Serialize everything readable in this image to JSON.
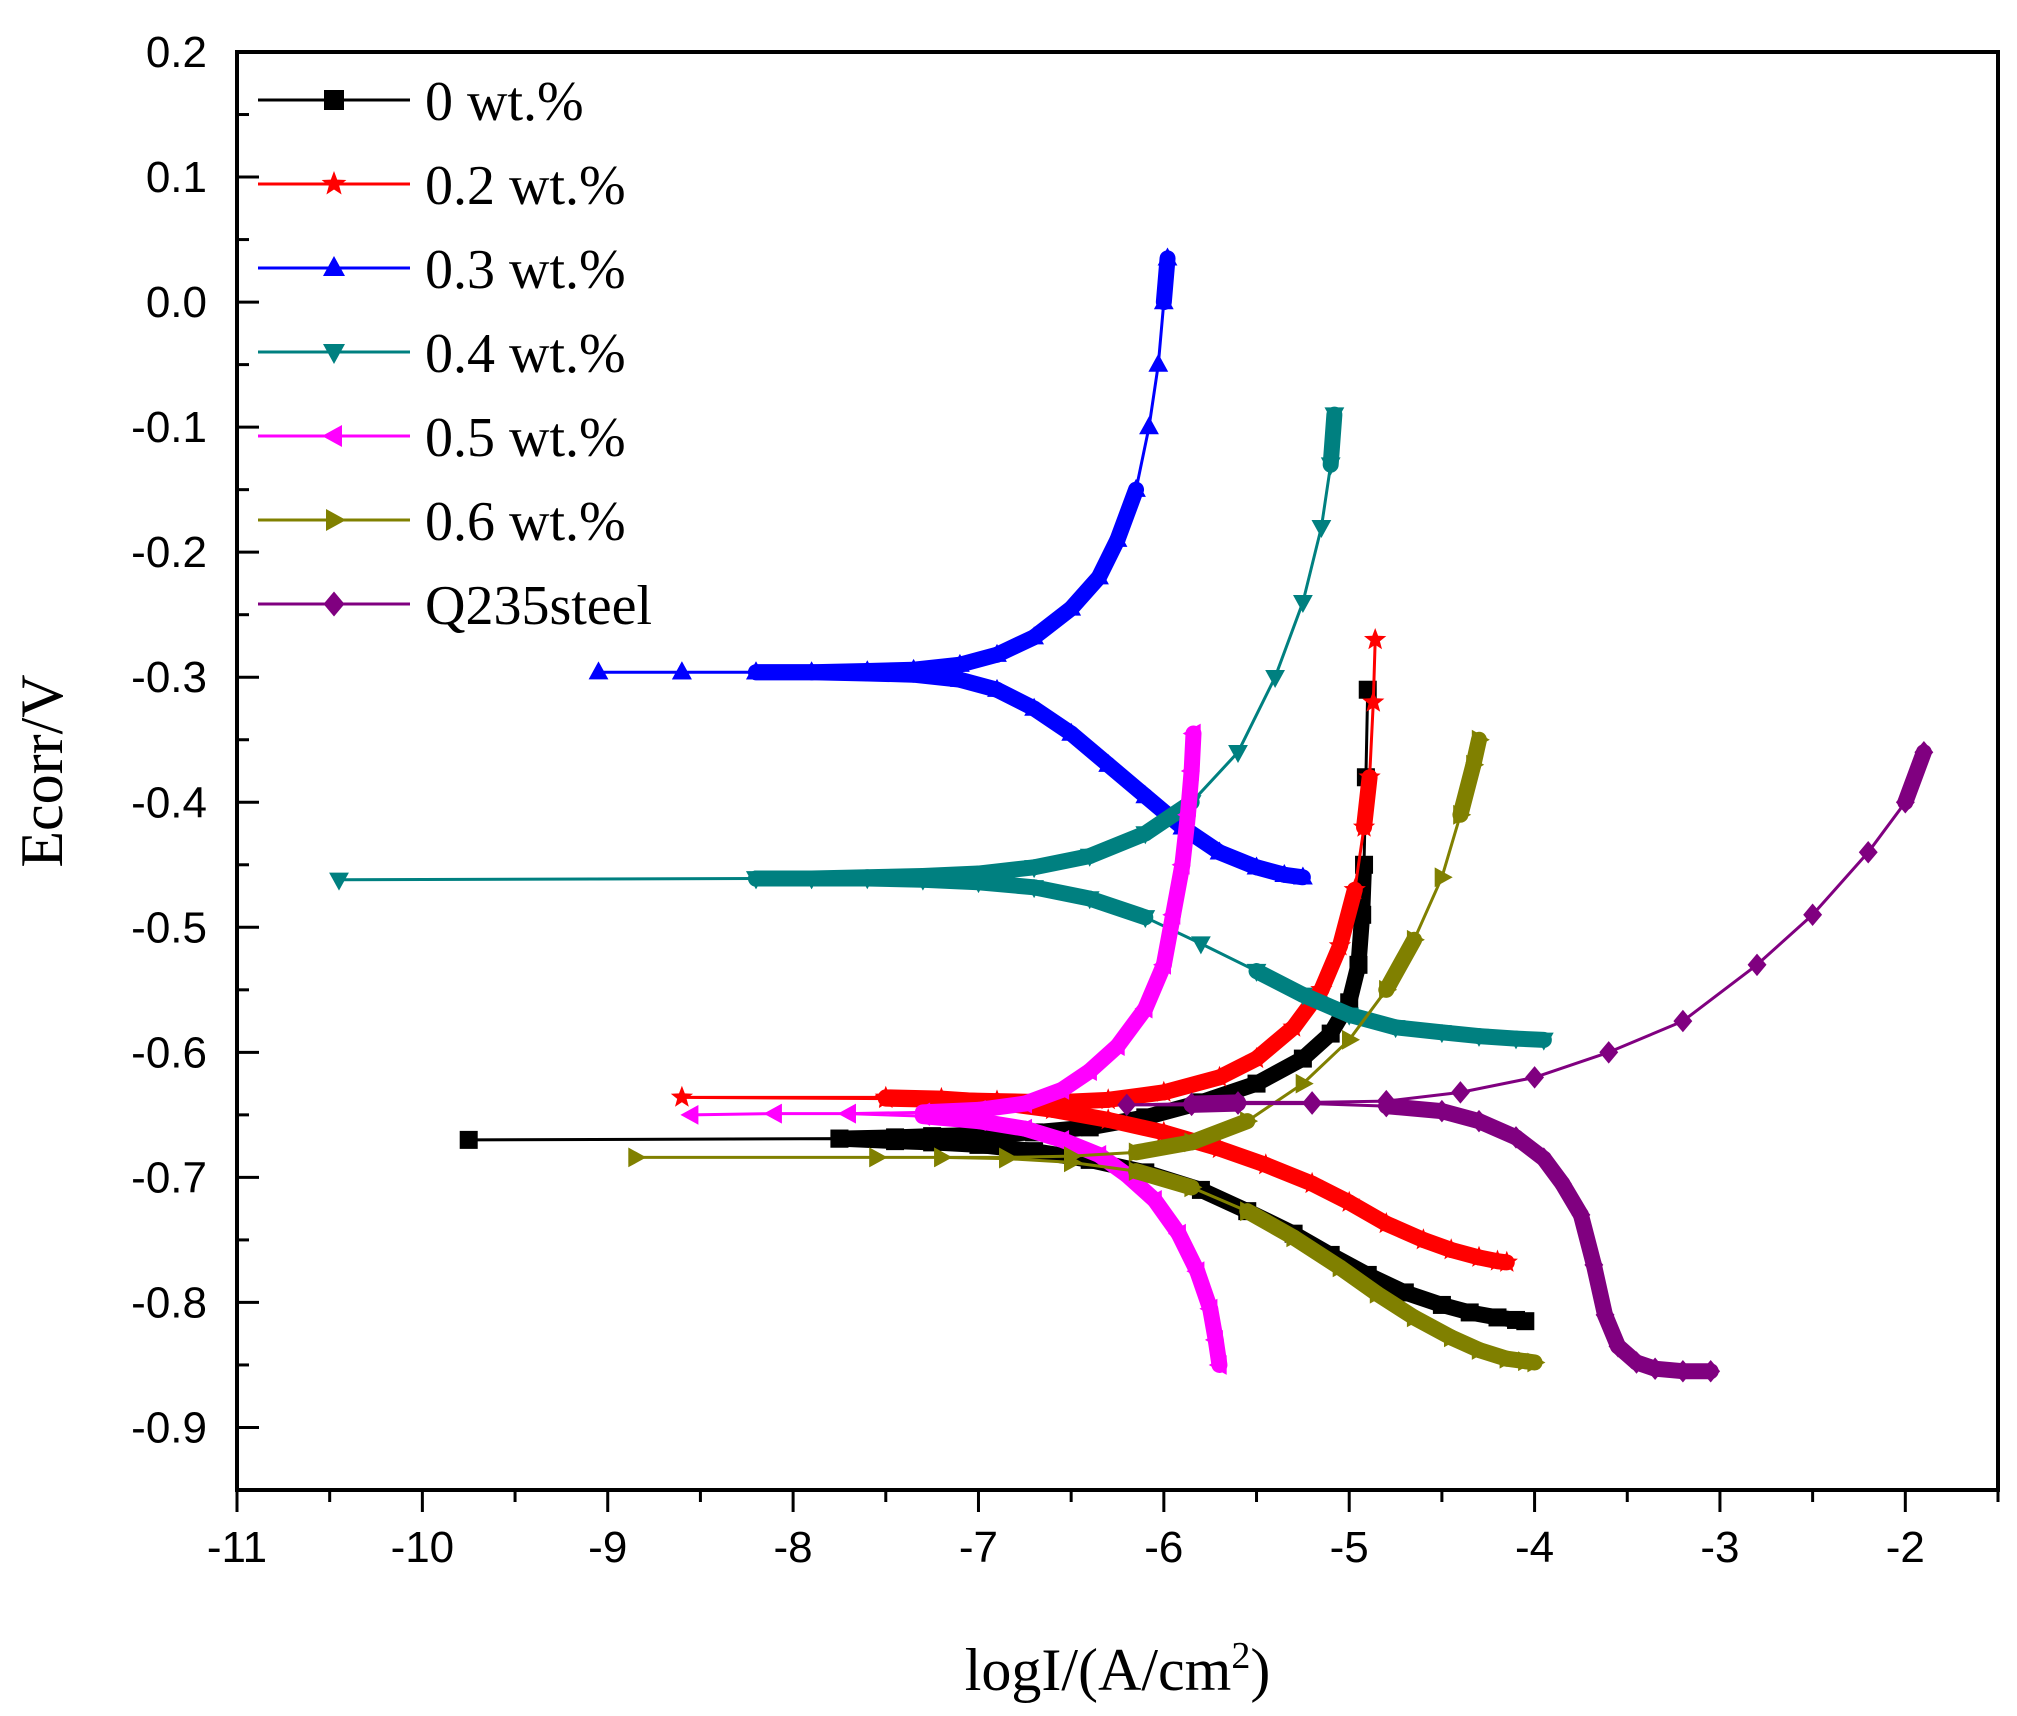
{
  "chart_data": {
    "type": "line",
    "title": "",
    "xlabel": "logI/(A/cm",
    "xlabel_sup": "2",
    "xlabel_end": ")",
    "ylabel": "Ecorr/V",
    "xlim": [
      -11,
      -1.5
    ],
    "ylim": [
      -0.95,
      0.2
    ],
    "xticks": [
      -11,
      -10,
      -9,
      -8,
      -7,
      -6,
      -5,
      -4,
      -3,
      -2
    ],
    "xtick_labels": [
      "-11",
      "-10",
      "-9",
      "-8",
      "-7",
      "-6",
      "-5",
      "-4",
      "-3",
      "-2"
    ],
    "yticks": [
      0.2,
      0.1,
      0.0,
      -0.1,
      -0.2,
      -0.3,
      -0.4,
      -0.5,
      -0.6,
      -0.7,
      -0.8,
      -0.9
    ],
    "ytick_labels": [
      "0.2",
      "0.1",
      "0.0",
      "-0.1",
      "-0.2",
      "-0.3",
      "-0.4",
      "-0.5",
      "-0.6",
      "-0.7",
      "-0.8",
      "-0.9"
    ],
    "legend_position": "top-left",
    "series": [
      {
        "name": "0 wt.%",
        "color": "#000000",
        "marker": "square",
        "x": [
          -4.05,
          -4.1,
          -4.2,
          -4.35,
          -4.5,
          -4.7,
          -4.9,
          -5.1,
          -5.3,
          -5.55,
          -5.8,
          -6.1,
          -6.4,
          -6.7,
          -7.0,
          -7.25,
          -7.45,
          -7.75,
          -9.75,
          -7.75,
          -7.45,
          -7.25,
          -7.0,
          -6.7,
          -6.4,
          -6.1,
          -5.8,
          -5.5,
          -5.25,
          -5.1,
          -5.0,
          -4.95,
          -4.93,
          -4.92,
          -4.91,
          -4.9
        ],
        "y": [
          -0.815,
          -0.814,
          -0.812,
          -0.808,
          -0.802,
          -0.792,
          -0.778,
          -0.762,
          -0.745,
          -0.727,
          -0.71,
          -0.696,
          -0.686,
          -0.679,
          -0.674,
          -0.672,
          -0.671,
          -0.669,
          -0.67,
          -0.669,
          -0.668,
          -0.667,
          -0.666,
          -0.664,
          -0.66,
          -0.652,
          -0.64,
          -0.625,
          -0.605,
          -0.585,
          -0.56,
          -0.53,
          -0.49,
          -0.45,
          -0.38,
          -0.31
        ]
      },
      {
        "name": "0.2 wt.%",
        "color": "#ff0000",
        "marker": "star",
        "x": [
          -4.15,
          -4.2,
          -4.3,
          -4.45,
          -4.6,
          -4.8,
          -5.0,
          -5.2,
          -5.45,
          -5.7,
          -6.0,
          -6.3,
          -6.6,
          -6.9,
          -7.2,
          -7.5,
          -8.6,
          -7.5,
          -7.2,
          -6.9,
          -6.6,
          -6.3,
          -6.0,
          -5.7,
          -5.5,
          -5.3,
          -5.15,
          -5.05,
          -4.97,
          -4.92,
          -4.89,
          -4.87,
          -4.86
        ],
        "y": [
          -0.768,
          -0.767,
          -0.764,
          -0.758,
          -0.75,
          -0.737,
          -0.72,
          -0.705,
          -0.69,
          -0.677,
          -0.664,
          -0.654,
          -0.646,
          -0.64,
          -0.637,
          -0.636,
          -0.636,
          -0.637,
          -0.638,
          -0.639,
          -0.64,
          -0.638,
          -0.632,
          -0.62,
          -0.605,
          -0.58,
          -0.55,
          -0.515,
          -0.47,
          -0.42,
          -0.38,
          -0.32,
          -0.27
        ]
      },
      {
        "name": "0.3 wt.%",
        "color": "#0000ff",
        "marker": "triangle-up",
        "x": [
          -5.25,
          -5.35,
          -5.5,
          -5.7,
          -5.9,
          -6.1,
          -6.3,
          -6.5,
          -6.7,
          -6.9,
          -7.1,
          -7.35,
          -7.6,
          -7.9,
          -8.2,
          -8.6,
          -9.05,
          -8.6,
          -8.2,
          -7.9,
          -7.6,
          -7.35,
          -7.1,
          -6.9,
          -6.7,
          -6.5,
          -6.35,
          -6.25,
          -6.15,
          -6.08,
          -6.03,
          -6.0,
          -5.98
        ],
        "y": [
          -0.46,
          -0.458,
          -0.452,
          -0.44,
          -0.42,
          -0.395,
          -0.37,
          -0.345,
          -0.325,
          -0.31,
          -0.302,
          -0.298,
          -0.297,
          -0.296,
          -0.296,
          -0.296,
          -0.296,
          -0.296,
          -0.296,
          -0.296,
          -0.295,
          -0.294,
          -0.29,
          -0.282,
          -0.268,
          -0.245,
          -0.22,
          -0.19,
          -0.15,
          -0.1,
          -0.05,
          0.0,
          0.035
        ]
      },
      {
        "name": "0.4 wt.%",
        "color": "#008080",
        "marker": "triangle-down",
        "x": [
          -3.95,
          -4.1,
          -4.3,
          -4.5,
          -4.75,
          -5.0,
          -5.25,
          -5.5,
          -5.8,
          -6.1,
          -6.4,
          -6.7,
          -7.0,
          -7.3,
          -7.6,
          -7.9,
          -8.2,
          -10.45,
          -8.2,
          -7.9,
          -7.6,
          -7.3,
          -7.0,
          -6.7,
          -6.4,
          -6.1,
          -5.85,
          -5.6,
          -5.4,
          -5.25,
          -5.15,
          -5.1,
          -5.08
        ],
        "y": [
          -0.59,
          -0.589,
          -0.587,
          -0.584,
          -0.58,
          -0.57,
          -0.554,
          -0.535,
          -0.513,
          -0.492,
          -0.477,
          -0.468,
          -0.464,
          -0.462,
          -0.461,
          -0.461,
          -0.461,
          -0.462,
          -0.461,
          -0.461,
          -0.46,
          -0.459,
          -0.457,
          -0.452,
          -0.443,
          -0.425,
          -0.4,
          -0.36,
          -0.3,
          -0.24,
          -0.18,
          -0.13,
          -0.09
        ]
      },
      {
        "name": "0.5 wt.%",
        "color": "#ff00ff",
        "marker": "triangle-left",
        "x": [
          -5.7,
          -5.72,
          -5.75,
          -5.82,
          -5.92,
          -6.05,
          -6.2,
          -6.35,
          -6.55,
          -6.75,
          -7.0,
          -7.3,
          -7.7,
          -8.1,
          -8.55,
          -8.1,
          -7.7,
          -7.3,
          -7.0,
          -6.75,
          -6.55,
          -6.4,
          -6.25,
          -6.1,
          -6.0,
          -5.95,
          -5.9,
          -5.87,
          -5.85,
          -5.84
        ],
        "y": [
          -0.85,
          -0.83,
          -0.805,
          -0.775,
          -0.745,
          -0.718,
          -0.698,
          -0.682,
          -0.67,
          -0.661,
          -0.655,
          -0.651,
          -0.649,
          -0.649,
          -0.65,
          -0.649,
          -0.649,
          -0.648,
          -0.646,
          -0.641,
          -0.63,
          -0.615,
          -0.595,
          -0.565,
          -0.53,
          -0.49,
          -0.45,
          -0.41,
          -0.375,
          -0.345
        ]
      },
      {
        "name": "0.6 wt.%",
        "color": "#808000",
        "marker": "triangle-right",
        "x": [
          -4.0,
          -4.05,
          -4.15,
          -4.3,
          -4.45,
          -4.65,
          -4.85,
          -5.05,
          -5.3,
          -5.55,
          -5.85,
          -6.15,
          -6.5,
          -6.85,
          -7.2,
          -7.55,
          -8.85,
          -7.55,
          -7.2,
          -6.85,
          -6.5,
          -6.15,
          -5.85,
          -5.55,
          -5.25,
          -5.0,
          -4.8,
          -4.65,
          -4.5,
          -4.4,
          -4.33,
          -4.3
        ],
        "y": [
          -0.848,
          -0.847,
          -0.845,
          -0.838,
          -0.828,
          -0.812,
          -0.793,
          -0.772,
          -0.748,
          -0.727,
          -0.708,
          -0.695,
          -0.688,
          -0.685,
          -0.684,
          -0.684,
          -0.684,
          -0.684,
          -0.684,
          -0.684,
          -0.683,
          -0.68,
          -0.672,
          -0.655,
          -0.625,
          -0.59,
          -0.55,
          -0.51,
          -0.46,
          -0.41,
          -0.37,
          -0.35
        ]
      },
      {
        "name": "Q235steel",
        "color": "#800080",
        "marker": "diamond",
        "x": [
          -3.05,
          -3.2,
          -3.35,
          -3.45,
          -3.55,
          -3.62,
          -3.68,
          -3.75,
          -3.85,
          -3.95,
          -4.1,
          -4.3,
          -4.5,
          -4.8,
          -5.2,
          -5.6,
          -5.85,
          -6.2,
          -5.85,
          -5.6,
          -5.2,
          -4.8,
          -4.4,
          -4.0,
          -3.6,
          -3.2,
          -2.8,
          -2.5,
          -2.2,
          -2.0,
          -1.9
        ],
        "y": [
          -0.855,
          -0.855,
          -0.853,
          -0.848,
          -0.835,
          -0.81,
          -0.77,
          -0.73,
          -0.705,
          -0.685,
          -0.668,
          -0.655,
          -0.647,
          -0.643,
          -0.641,
          -0.641,
          -0.642,
          -0.642,
          -0.641,
          -0.64,
          -0.64,
          -0.639,
          -0.632,
          -0.62,
          -0.6,
          -0.575,
          -0.53,
          -0.49,
          -0.44,
          -0.4,
          -0.36
        ]
      }
    ]
  }
}
